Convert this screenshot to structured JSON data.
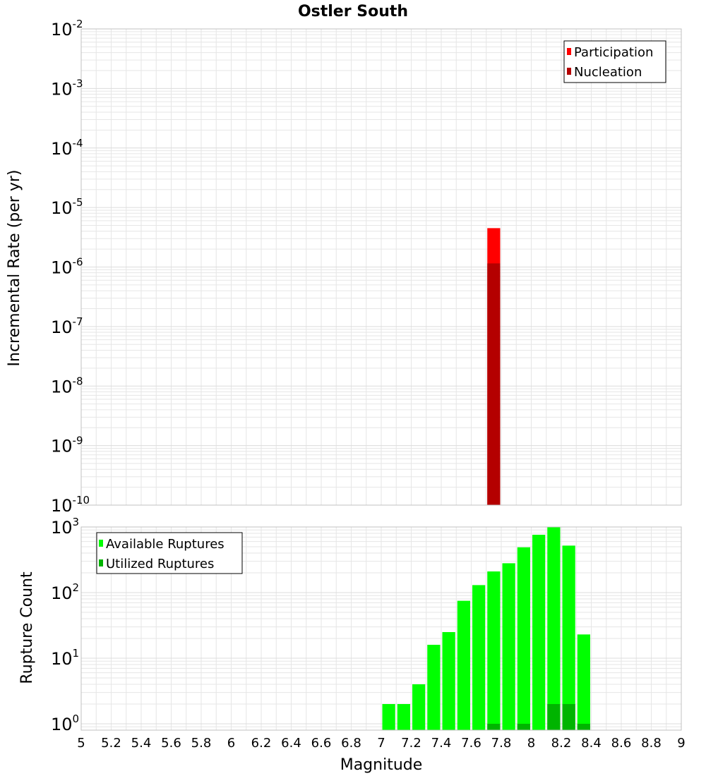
{
  "title": "Ostler South",
  "xlabel": "Magnitude",
  "x_ticks": [
    "5",
    "5.2",
    "5.4",
    "5.6",
    "5.8",
    "6",
    "6.2",
    "6.4",
    "6.6",
    "6.8",
    "7",
    "7.2",
    "7.4",
    "7.6",
    "7.8",
    "8",
    "8.2",
    "8.4",
    "8.6",
    "8.8",
    "9"
  ],
  "colors": {
    "participation": "#ff0000",
    "nucleation": "#b40000",
    "available": "#00ff00",
    "utilized": "#00b400",
    "grid": "#e6e6e6",
    "frame": "#c0c0c0"
  },
  "chart_data": [
    {
      "type": "bar",
      "name": "rate",
      "ylabel": "Incremental Rate (per yr)",
      "xlim": [
        5,
        9
      ],
      "ylim": [
        1e-10,
        0.01
      ],
      "yscale": "log",
      "y_ticks": [
        {
          "base": "10",
          "exp": "-2"
        },
        {
          "base": "10",
          "exp": "-3"
        },
        {
          "base": "10",
          "exp": "-4"
        },
        {
          "base": "10",
          "exp": "-5"
        },
        {
          "base": "10",
          "exp": "-6"
        },
        {
          "base": "10",
          "exp": "-7"
        },
        {
          "base": "10",
          "exp": "-8"
        },
        {
          "base": "10",
          "exp": "-9"
        },
        {
          "base": "10",
          "exp": "-10"
        }
      ],
      "grid": true,
      "legend_position": "top-right",
      "bar_width": 0.1,
      "series": [
        {
          "name": "Participation",
          "color_key": "participation",
          "x": [
            7.75
          ],
          "values": [
            4.5e-06
          ]
        },
        {
          "name": "Nucleation",
          "color_key": "nucleation",
          "x": [
            7.75
          ],
          "values": [
            1.15e-06
          ]
        }
      ]
    },
    {
      "type": "bar",
      "name": "count",
      "ylabel": "Rupture Count",
      "xlim": [
        5,
        9
      ],
      "ylim": [
        0.8,
        1000
      ],
      "yscale": "log",
      "y_ticks": [
        {
          "base": "10",
          "exp": "3"
        },
        {
          "base": "10",
          "exp": "2"
        },
        {
          "base": "10",
          "exp": "1"
        },
        {
          "base": "10",
          "exp": "0"
        }
      ],
      "grid": true,
      "legend_position": "top-left",
      "bar_width": 0.1,
      "series": [
        {
          "name": "Available Ruptures",
          "color_key": "available",
          "x": [
            7.05,
            7.15,
            7.25,
            7.35,
            7.45,
            7.55,
            7.65,
            7.75,
            7.85,
            7.95,
            8.05,
            8.15,
            8.25,
            8.35
          ],
          "values": [
            2,
            2,
            4,
            16,
            25,
            75,
            130,
            210,
            280,
            490,
            760,
            1000,
            520,
            23
          ]
        },
        {
          "name": "Utilized Ruptures",
          "color_key": "utilized",
          "x": [
            7.75,
            7.95,
            8.15,
            8.25,
            8.35
          ],
          "values": [
            1,
            1,
            2,
            2,
            1
          ]
        }
      ]
    }
  ]
}
